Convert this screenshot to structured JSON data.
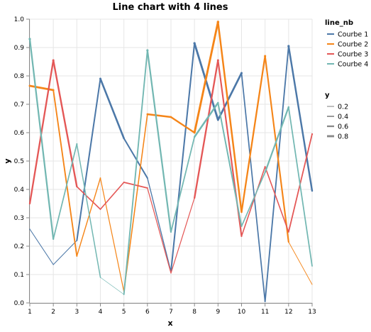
{
  "chart_data": {
    "type": "line",
    "title": "Line chart with 4 lines",
    "xlabel": "x",
    "ylabel": "y",
    "x": [
      1,
      2,
      3,
      4,
      5,
      6,
      7,
      8,
      9,
      10,
      11,
      12,
      13
    ],
    "xlim": [
      1,
      13
    ],
    "ylim": [
      0,
      1
    ],
    "yticks": [
      "0.0",
      "0.1",
      "0.2",
      "0.3",
      "0.4",
      "0.5",
      "0.6",
      "0.7",
      "0.8",
      "0.9",
      "1.0"
    ],
    "xticks": [
      "1",
      "2",
      "3",
      "4",
      "5",
      "6",
      "7",
      "8",
      "9",
      "10",
      "11",
      "12",
      "13"
    ],
    "grid": true,
    "stroke_width_encodes": "y",
    "series": [
      {
        "name": "Courbe 1",
        "color": "#4c78a8",
        "values": [
          0.26,
          0.135,
          0.22,
          0.79,
          0.58,
          0.44,
          0.11,
          0.915,
          0.645,
          0.81,
          0.005,
          0.905,
          0.395
        ]
      },
      {
        "name": "Courbe 2",
        "color": "#f58518",
        "values": [
          0.765,
          0.75,
          0.165,
          0.44,
          0.04,
          0.665,
          0.655,
          0.6,
          0.99,
          0.32,
          0.87,
          0.215,
          0.065
        ]
      },
      {
        "name": "Courbe 3",
        "color": "#e45756",
        "values": [
          0.35,
          0.855,
          0.41,
          0.33,
          0.425,
          0.405,
          0.105,
          0.37,
          0.855,
          0.235,
          0.48,
          0.25,
          0.595
        ]
      },
      {
        "name": "Courbe 4",
        "color": "#72b7b2",
        "values": [
          0.93,
          0.225,
          0.56,
          0.09,
          0.03,
          0.89,
          0.25,
          0.585,
          0.705,
          0.27,
          0.46,
          0.69,
          0.13
        ]
      }
    ],
    "legends": {
      "color": {
        "title": "line_nb",
        "entries": [
          "Courbe 1",
          "Courbe 2",
          "Courbe 3",
          "Courbe 4"
        ]
      },
      "size": {
        "title": "y",
        "entries": [
          "0.2",
          "0.4",
          "0.6",
          "0.8"
        ],
        "values": [
          0.2,
          0.4,
          0.6,
          0.8
        ]
      }
    },
    "legend_placement": "right"
  }
}
